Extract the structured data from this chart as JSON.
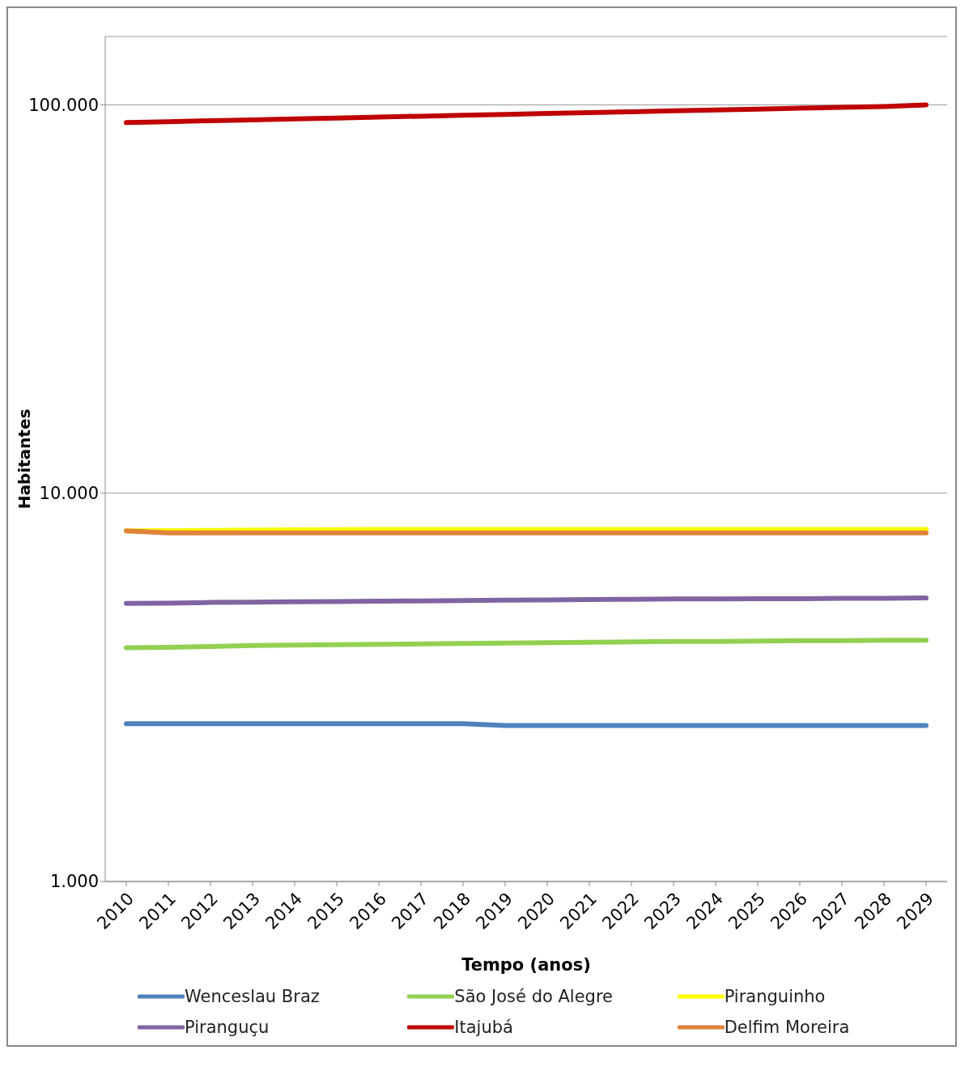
{
  "chart_data": {
    "type": "line",
    "xlabel": "Tempo (anos)",
    "ylabel": "Habitantes",
    "log": "y",
    "grid": "y",
    "legend": "bottom",
    "marker": "none",
    "line_style": "solid",
    "categories": [
      "2010",
      "2011",
      "2012",
      "2013",
      "2014",
      "2015",
      "2016",
      "2017",
      "2018",
      "2019",
      "2020",
      "2021",
      "2022",
      "2023",
      "2024",
      "2025",
      "2026",
      "2027",
      "2028",
      "2029"
    ],
    "ylim": [
      1000,
      150000
    ],
    "yticks": [
      {
        "value": 1000,
        "label": "1.000"
      },
      {
        "value": 10000,
        "label": "10.000"
      },
      {
        "value": 100000,
        "label": "100.000"
      }
    ],
    "series": [
      {
        "name": "Wenceslau Braz",
        "color": "#4f81bd",
        "values": [
          2550,
          2550,
          2550,
          2550,
          2550,
          2550,
          2550,
          2550,
          2550,
          2520,
          2520,
          2520,
          2520,
          2520,
          2520,
          2520,
          2520,
          2520,
          2520,
          2520
        ]
      },
      {
        "name": "São José do Alegre",
        "color": "#92d050",
        "values": [
          4000,
          4010,
          4030,
          4050,
          4060,
          4070,
          4080,
          4090,
          4100,
          4110,
          4120,
          4130,
          4140,
          4150,
          4150,
          4160,
          4170,
          4170,
          4180,
          4180
        ]
      },
      {
        "name": "Piranguinho",
        "color": "#ffff00",
        "values": [
          8000,
          8010,
          8020,
          8030,
          8040,
          8050,
          8060,
          8060,
          8060,
          8060,
          8060,
          8060,
          8060,
          8060,
          8060,
          8060,
          8060,
          8060,
          8060,
          8060
        ]
      },
      {
        "name": "Piranguçu",
        "color": "#8064a2",
        "values": [
          5200,
          5210,
          5230,
          5240,
          5250,
          5260,
          5270,
          5280,
          5290,
          5300,
          5310,
          5320,
          5330,
          5340,
          5340,
          5350,
          5350,
          5360,
          5360,
          5370
        ]
      },
      {
        "name": "Itajubá",
        "color": "#c00000",
        "values": [
          90000,
          90500,
          91000,
          91500,
          92000,
          92500,
          93000,
          93500,
          94000,
          94500,
          95000,
          95500,
          96000,
          96500,
          97000,
          97500,
          98000,
          98500,
          99000,
          100000
        ]
      },
      {
        "name": "Delfim Moreira",
        "color": "#e0823a",
        "values": [
          8000,
          7900,
          7900,
          7900,
          7900,
          7900,
          7900,
          7900,
          7900,
          7900,
          7900,
          7900,
          7900,
          7900,
          7900,
          7900,
          7900,
          7900,
          7900,
          7900
        ]
      }
    ]
  }
}
